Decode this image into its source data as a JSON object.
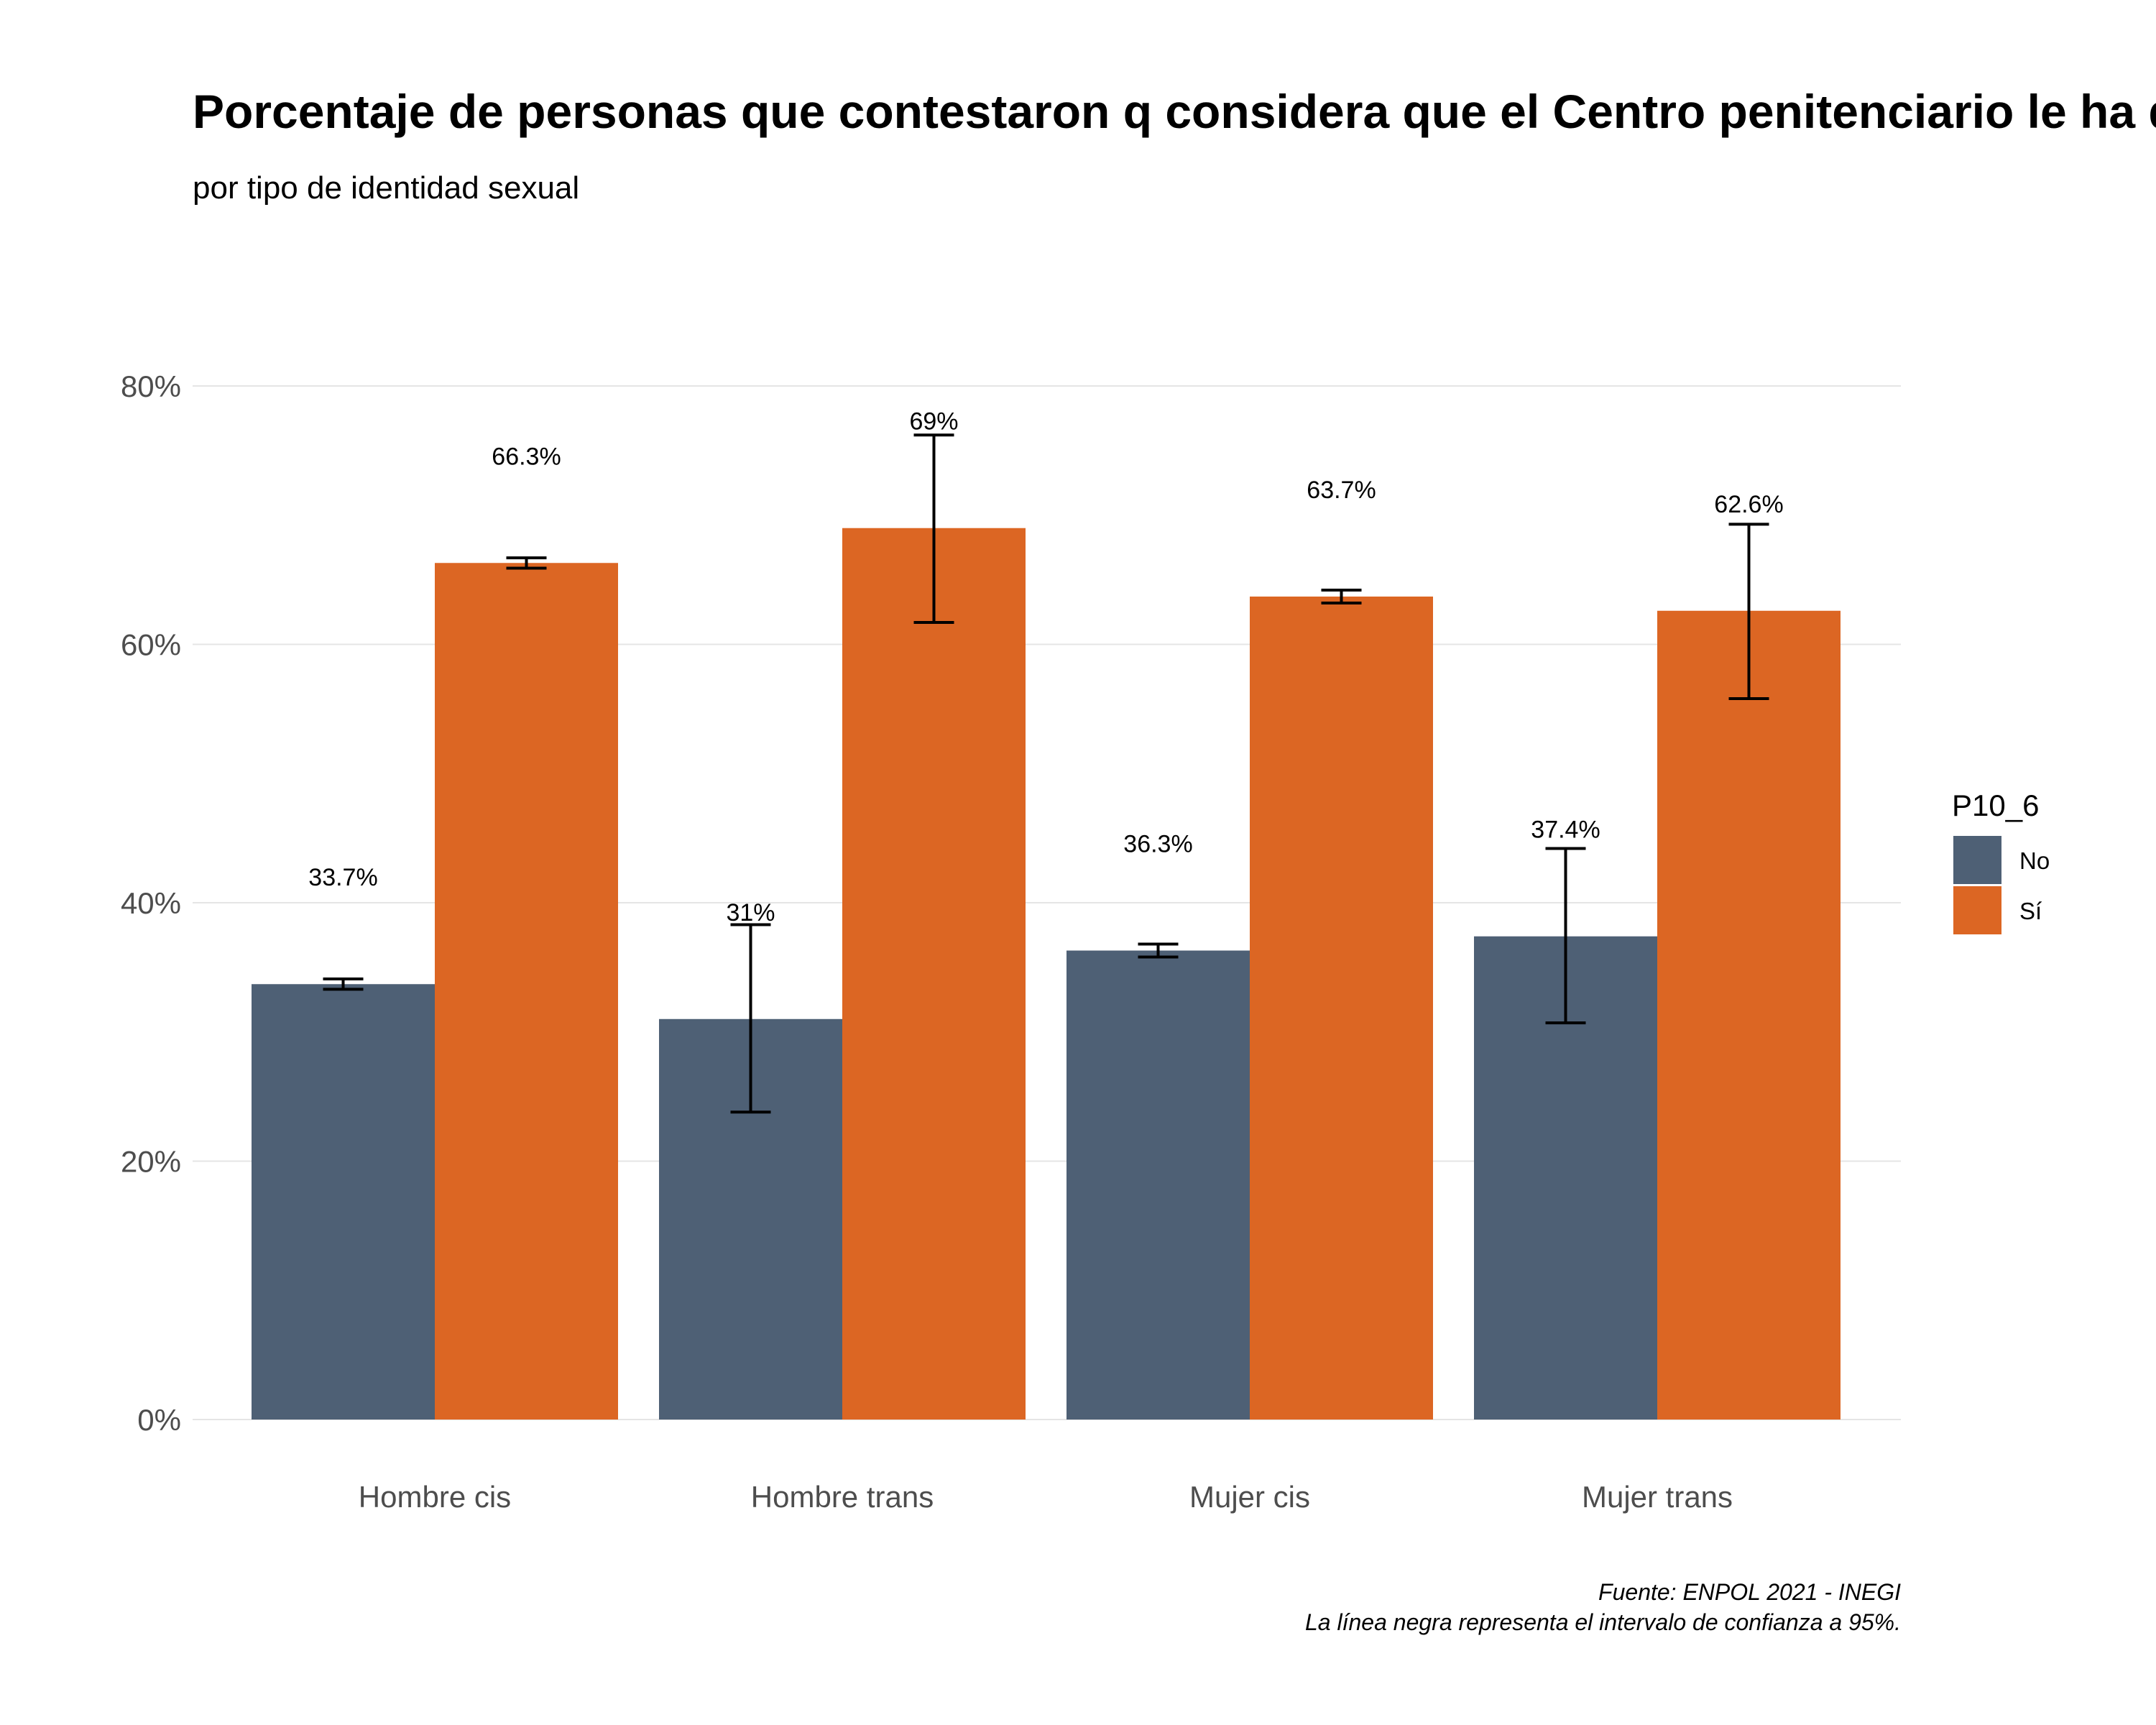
{
  "title": "Porcentaje de personas que contestaron q considera que el Centro penitenciario le ha dado la",
  "subtitle": "por tipo de identidad sexual",
  "caption_lines": [
    "Fuente: ENPOL 2021 - INEGI",
    "La línea negra representa el intervalo de confianza a 95%."
  ],
  "colors": {
    "No": "#4e6075",
    "Sí": "#dc6623"
  },
  "chart_data": {
    "type": "bar",
    "categories": [
      "Hombre cis",
      "Hombre trans",
      "Mujer cis",
      "Mujer trans"
    ],
    "series": [
      {
        "name": "No",
        "values": [
          33.7,
          31.0,
          36.3,
          37.4
        ],
        "ci_low": [
          33.3,
          23.8,
          35.8,
          30.7
        ],
        "ci_high": [
          34.1,
          38.3,
          36.8,
          44.2
        ],
        "labels": [
          "33.7%",
          "31%",
          "36.3%",
          "37.4%"
        ]
      },
      {
        "name": "Sí",
        "values": [
          66.3,
          69.0,
          63.7,
          62.6
        ],
        "ci_low": [
          65.9,
          61.7,
          63.2,
          55.8
        ],
        "ci_high": [
          66.7,
          76.2,
          64.2,
          69.3
        ],
        "labels": [
          "66.3%",
          "69%",
          "63.7%",
          "62.6%"
        ]
      }
    ],
    "y_ticks": [
      0,
      20,
      40,
      60,
      80
    ],
    "y_tick_labels": [
      "0%",
      "20%",
      "40%",
      "60%",
      "80%"
    ],
    "ylim": [
      0,
      80
    ],
    "legend_title": "P10_6",
    "legend_position": "right",
    "grid": true
  }
}
